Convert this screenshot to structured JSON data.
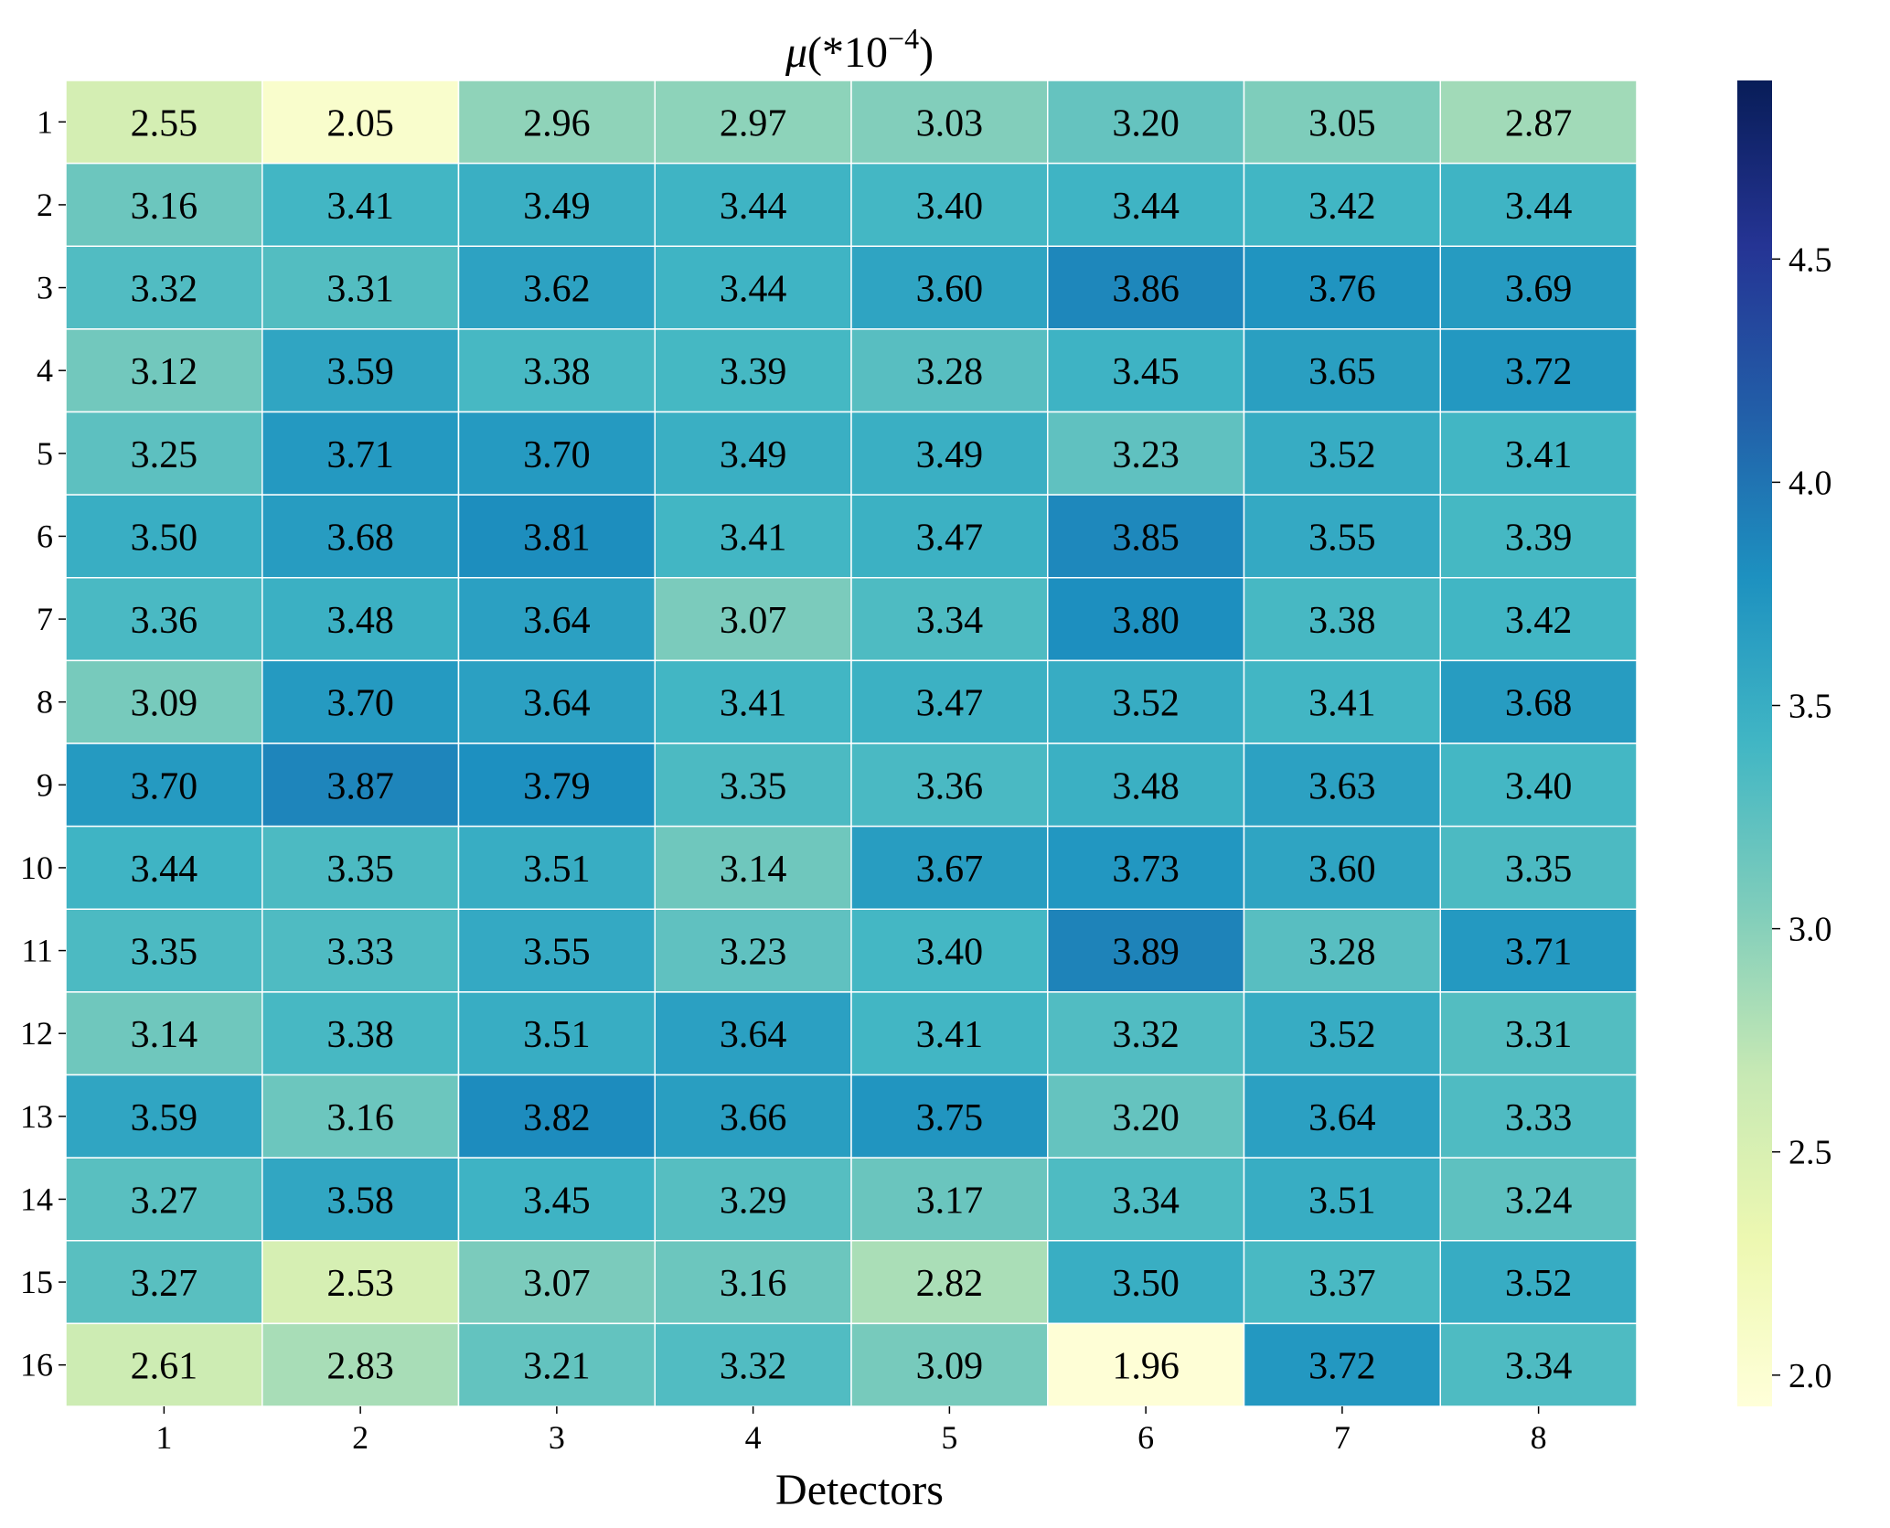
{
  "chart_data": {
    "type": "heatmap",
    "title_symbol": "μ",
    "title_base": "(*10",
    "title_exponent": "−4",
    "title_close": ")",
    "xlabel": "Detectors",
    "ylabel": "",
    "x_categories": [
      "1",
      "2",
      "3",
      "4",
      "5",
      "6",
      "7",
      "8"
    ],
    "y_categories": [
      "1",
      "2",
      "3",
      "4",
      "5",
      "6",
      "7",
      "8",
      "9",
      "10",
      "11",
      "12",
      "13",
      "14",
      "15",
      "16"
    ],
    "values": [
      [
        2.55,
        2.05,
        2.96,
        2.97,
        3.03,
        3.2,
        3.05,
        2.87
      ],
      [
        3.16,
        3.41,
        3.49,
        3.44,
        3.4,
        3.44,
        3.42,
        3.44
      ],
      [
        3.32,
        3.31,
        3.62,
        3.44,
        3.6,
        3.86,
        3.76,
        3.69
      ],
      [
        3.12,
        3.59,
        3.38,
        3.39,
        3.28,
        3.45,
        3.65,
        3.72
      ],
      [
        3.25,
        3.71,
        3.7,
        3.49,
        3.49,
        3.23,
        3.52,
        3.41
      ],
      [
        3.5,
        3.68,
        3.81,
        3.41,
        3.47,
        3.85,
        3.55,
        3.39
      ],
      [
        3.36,
        3.48,
        3.64,
        3.07,
        3.34,
        3.8,
        3.38,
        3.42
      ],
      [
        3.09,
        3.7,
        3.64,
        3.41,
        3.47,
        3.52,
        3.41,
        3.68
      ],
      [
        3.7,
        3.87,
        3.79,
        3.35,
        3.36,
        3.48,
        3.63,
        3.4
      ],
      [
        3.44,
        3.35,
        3.51,
        3.14,
        3.67,
        3.73,
        3.6,
        3.35
      ],
      [
        3.35,
        3.33,
        3.55,
        3.23,
        3.4,
        3.89,
        3.28,
        3.71
      ],
      [
        3.14,
        3.38,
        3.51,
        3.64,
        3.41,
        3.32,
        3.52,
        3.31
      ],
      [
        3.59,
        3.16,
        3.82,
        3.66,
        3.75,
        3.2,
        3.64,
        3.33
      ],
      [
        3.27,
        3.58,
        3.45,
        3.29,
        3.17,
        3.34,
        3.51,
        3.24
      ],
      [
        3.27,
        2.53,
        3.07,
        3.16,
        2.82,
        3.5,
        3.37,
        3.52
      ],
      [
        2.61,
        2.83,
        3.21,
        3.32,
        3.09,
        1.96,
        3.72,
        3.34
      ]
    ],
    "value_labels": [
      [
        "2.55",
        "2.05",
        "2.96",
        "2.97",
        "3.03",
        "3.20",
        "3.05",
        "2.87"
      ],
      [
        "3.16",
        "3.41",
        "3.49",
        "3.44",
        "3.40",
        "3.44",
        "3.42",
        "3.44"
      ],
      [
        "3.32",
        "3.31",
        "3.62",
        "3.44",
        "3.60",
        "3.86",
        "3.76",
        "3.69"
      ],
      [
        "3.12",
        "3.59",
        "3.38",
        "3.39",
        "3.28",
        "3.45",
        "3.65",
        "3.72"
      ],
      [
        "3.25",
        "3.71",
        "3.70",
        "3.49",
        "3.49",
        "3.23",
        "3.52",
        "3.41"
      ],
      [
        "3.50",
        "3.68",
        "3.81",
        "3.41",
        "3.47",
        "3.85",
        "3.55",
        "3.39"
      ],
      [
        "3.36",
        "3.48",
        "3.64",
        "3.07",
        "3.34",
        "3.80",
        "3.38",
        "3.42"
      ],
      [
        "3.09",
        "3.70",
        "3.64",
        "3.41",
        "3.47",
        "3.52",
        "3.41",
        "3.68"
      ],
      [
        "3.70",
        "3.87",
        "3.79",
        "3.35",
        "3.36",
        "3.48",
        "3.63",
        "3.40"
      ],
      [
        "3.44",
        "3.35",
        "3.51",
        "3.14",
        "3.67",
        "3.73",
        "3.60",
        "3.35"
      ],
      [
        "3.35",
        "3.33",
        "3.55",
        "3.23",
        "3.40",
        "3.89",
        "3.28",
        "3.71"
      ],
      [
        "3.14",
        "3.38",
        "3.51",
        "3.64",
        "3.41",
        "3.32",
        "3.52",
        "3.31"
      ],
      [
        "3.59",
        "3.16",
        "3.82",
        "3.66",
        "3.75",
        "3.20",
        "3.64",
        "3.33"
      ],
      [
        "3.27",
        "3.58",
        "3.45",
        "3.29",
        "3.17",
        "3.34",
        "3.51",
        "3.24"
      ],
      [
        "3.27",
        "2.53",
        "3.07",
        "3.16",
        "2.82",
        "3.50",
        "3.37",
        "3.52"
      ],
      [
        "2.61",
        "2.83",
        "3.21",
        "3.32",
        "3.09",
        "1.96",
        "3.72",
        "3.34"
      ]
    ],
    "colorbar": {
      "vmin": 1.93,
      "vmax": 4.9,
      "ticks": [
        2.0,
        2.5,
        3.0,
        3.5,
        4.0,
        4.5
      ],
      "tick_labels": [
        "2.0",
        "2.5",
        "3.0",
        "3.5",
        "4.0",
        "4.5"
      ],
      "colormap": "YlGnBu",
      "colormap_stops": [
        "#ffffd9",
        "#edf8b1",
        "#c7e9b4",
        "#7fcdbb",
        "#41b6c4",
        "#1d91c0",
        "#225ea8",
        "#253494",
        "#081d58"
      ]
    },
    "cell_border_color": "#ffffff",
    "grid": false
  }
}
